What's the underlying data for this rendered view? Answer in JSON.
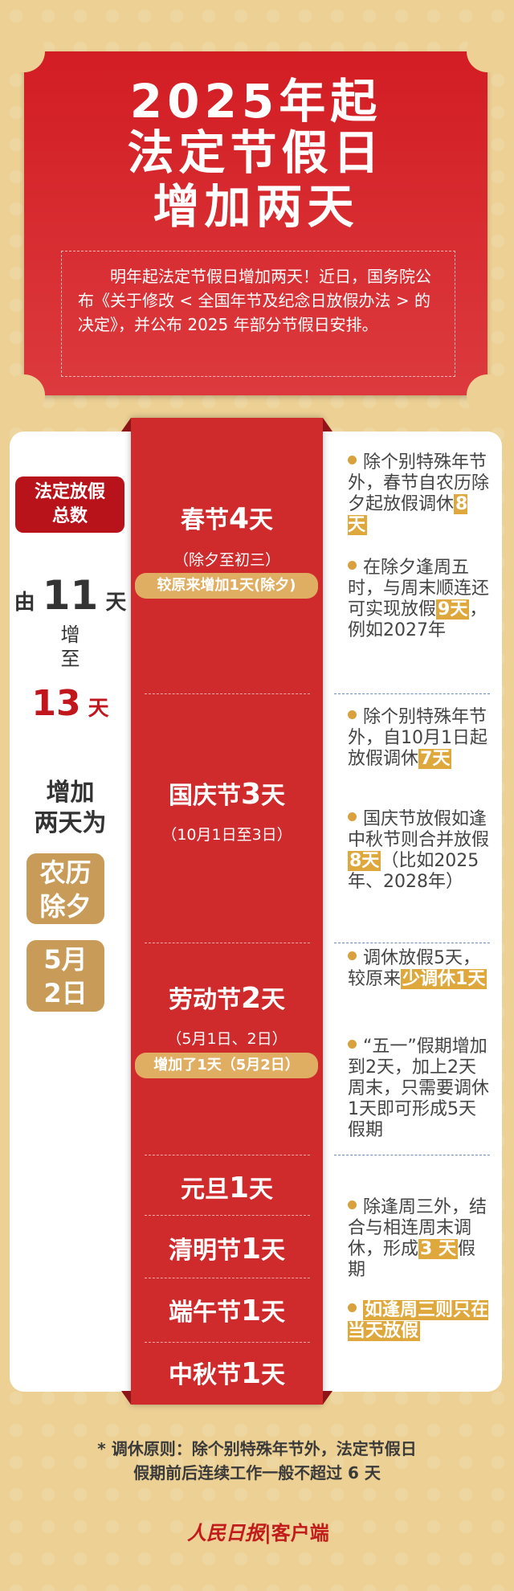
{
  "header": {
    "title_lines": [
      "2025年起",
      "法定节假日",
      "增加两天"
    ],
    "intro": "明年起法定节假日增加两天！近日，国务院公布《关于修改 < 全国年节及纪念日放假办法 > 的决定》，并公布 2025 年部分节假日安排。"
  },
  "left": {
    "badge_lines": [
      "法定放假",
      "总数"
    ],
    "from": "由",
    "from_num": "11",
    "from_unit": "天",
    "inc": "增",
    "to": "至",
    "to_num": "13",
    "to_unit": "天",
    "added_lines": [
      "增加",
      "两天为"
    ],
    "added_days": [
      [
        "农历",
        "除夕"
      ],
      [
        "5月",
        "2日"
      ]
    ]
  },
  "holidays": [
    {
      "name": "春节",
      "num": "4",
      "unit": "天",
      "sub": "（除夕至初三）",
      "pill": "较原来增加1天(除夕)"
    },
    {
      "name": "国庆节",
      "num": "3",
      "unit": "天",
      "sub": "（10月1日至3日）"
    },
    {
      "name": "劳动节",
      "num": "2",
      "unit": "天",
      "sub": "（5月1日、2日）",
      "pill": "增加了1天（5月2日）"
    },
    {
      "name": "元旦",
      "num": "1",
      "unit": "天"
    },
    {
      "name": "清明节",
      "num": "1",
      "unit": "天"
    },
    {
      "name": "端午节",
      "num": "1",
      "unit": "天"
    },
    {
      "name": "中秋节",
      "num": "1",
      "unit": "天"
    }
  ],
  "notes": [
    [
      "除个别特殊年节外，春节自农历除夕起放假调休",
      "8 天",
      ""
    ],
    [
      "在除夕逢周五时，与周末顺连还可实现放假",
      "9天",
      "，例如2027年"
    ],
    [
      "除个别特殊年节外，自10月1日起放假调休",
      "7天",
      ""
    ],
    [
      "国庆节放假如逢中秋节则合并放假",
      "8天",
      "（比如2025年、2028年）"
    ],
    [
      "调休放假5天，较原来",
      "少调休1天",
      ""
    ],
    [
      "“五一”假期增加到2天，加上2天周末，只需要调休1天即可形成5天假期",
      "",
      ""
    ],
    [
      "除逢周三外，结合与相连周末调休，形成",
      "3 天",
      "假期"
    ],
    [
      "",
      "如逢周三则只在当天放假",
      ""
    ]
  ],
  "footer": {
    "note_lines": [
      "* 调休原则：除个别特殊年节外，法定节假日",
      "假期前后连续工作一般不超过 6 天"
    ],
    "logo_script": "人民日报",
    "logo_text": "客户端"
  },
  "colors": {
    "red": "#cf2a2c",
    "gold": "#dfa83c",
    "background": "#ecd094",
    "dark_red": "#b8121a"
  }
}
